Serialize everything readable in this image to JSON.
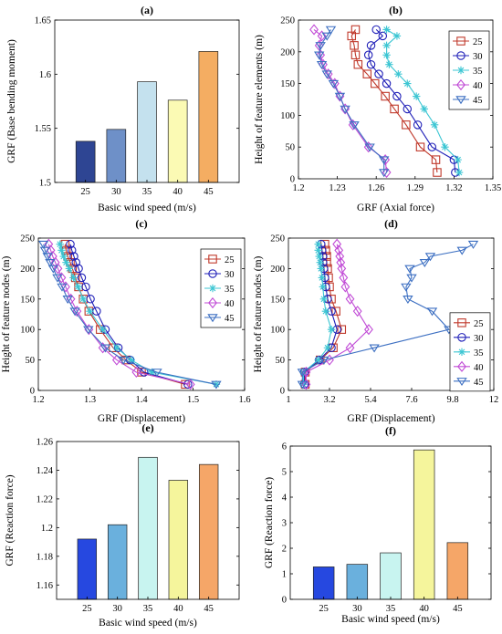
{
  "chart_data": [
    {
      "panel": "(a)",
      "type": "bar",
      "title": "(a)",
      "xlabel": "Basic wind speed (m/s)",
      "ylabel": "GRF (Base bending moment)",
      "categories": [
        "25",
        "30",
        "35",
        "40",
        "45"
      ],
      "values": [
        1.538,
        1.549,
        1.593,
        1.576,
        1.621
      ],
      "ylim": [
        1.5,
        1.65
      ],
      "yticks": [
        1.5,
        1.55,
        1.6,
        1.65
      ],
      "ytick_labels": [
        "1.5",
        "1.55",
        "1.6",
        "1.65"
      ],
      "colors": [
        "#2e4593",
        "#6e90c8",
        "#c4e1ee",
        "#fbfab4",
        "#f4ad62"
      ],
      "grid": false
    },
    {
      "panel": "(b)",
      "type": "line",
      "title": "(b)",
      "xlabel": "GRF (Axial force)",
      "ylabel": "Height of feature elements (m)",
      "xlim": [
        1.2,
        1.35
      ],
      "ylim": [
        0,
        250
      ],
      "xticks": [
        1.2,
        1.23,
        1.26,
        1.29,
        1.32,
        1.35
      ],
      "xtick_labels": [
        "1.2",
        "1.23",
        "1.26",
        "1.29",
        "1.32",
        "1.35"
      ],
      "yticks": [
        0,
        50,
        100,
        150,
        200,
        250
      ],
      "ytick_labels": [
        "0",
        "50",
        "100",
        "150",
        "200",
        "250"
      ],
      "legend_position": "top-right",
      "y": [
        235,
        225,
        210,
        195,
        180,
        165,
        150,
        130,
        110,
        85,
        50,
        30,
        10
      ],
      "series": [
        {
          "name": "25",
          "color": "#c0392b",
          "marker": "square",
          "x": [
            1.244,
            1.241,
            1.243,
            1.244,
            1.246,
            1.253,
            1.259,
            1.267,
            1.274,
            1.283,
            1.294,
            1.306,
            1.307
          ]
        },
        {
          "name": "30",
          "color": "#1f1fb8",
          "marker": "circle",
          "x": [
            1.26,
            1.265,
            1.256,
            1.254,
            1.256,
            1.262,
            1.268,
            1.276,
            1.284,
            1.292,
            1.303,
            1.32,
            1.321
          ]
        },
        {
          "name": "35",
          "color": "#3cc6d3",
          "marker": "star",
          "x": [
            1.268,
            1.276,
            1.268,
            1.268,
            1.27,
            1.277,
            1.284,
            1.291,
            1.297,
            1.305,
            1.313,
            1.323,
            1.324
          ]
        },
        {
          "name": "40",
          "color": "#c14bd6",
          "marker": "diamond",
          "x": [
            1.212,
            1.218,
            1.216,
            1.217,
            1.219,
            1.223,
            1.228,
            1.232,
            1.236,
            1.242,
            1.254,
            1.267,
            1.268
          ]
        },
        {
          "name": "45",
          "color": "#3c6fc2",
          "marker": "triangle-down",
          "x": [
            1.225,
            1.222,
            1.217,
            1.216,
            1.218,
            1.222,
            1.227,
            1.232,
            1.236,
            1.243,
            1.255,
            1.266,
            1.266
          ]
        }
      ]
    },
    {
      "panel": "(c)",
      "type": "line",
      "title": "(c)",
      "xlabel": "GRF (Displacement)",
      "ylabel": "Height of feature nodes (m)",
      "xlim": [
        1.2,
        1.6
      ],
      "ylim": [
        0,
        250
      ],
      "xticks": [
        1.2,
        1.3,
        1.4,
        1.5,
        1.6
      ],
      "xtick_labels": [
        "1.2",
        "1.3",
        "1.4",
        "1.5",
        "1.6"
      ],
      "yticks": [
        0,
        50,
        100,
        150,
        200,
        250
      ],
      "ytick_labels": [
        "0",
        "50",
        "100",
        "150",
        "200",
        "250"
      ],
      "legend_position": "top-right",
      "y": [
        240,
        230,
        220,
        210,
        200,
        185,
        170,
        150,
        130,
        100,
        70,
        50,
        30,
        10
      ],
      "series": [
        {
          "name": "25",
          "color": "#c0392b",
          "marker": "square",
          "x": [
            1.252,
            1.254,
            1.257,
            1.262,
            1.266,
            1.272,
            1.278,
            1.287,
            1.298,
            1.32,
            1.345,
            1.37,
            1.4,
            1.485
          ]
        },
        {
          "name": "30",
          "color": "#1f1fb8",
          "marker": "circle",
          "x": [
            1.262,
            1.265,
            1.269,
            1.273,
            1.278,
            1.284,
            1.292,
            1.301,
            1.313,
            1.33,
            1.355,
            1.378,
            1.405,
            1.49
          ]
        },
        {
          "name": "35",
          "color": "#3cc6d3",
          "marker": "star",
          "x": [
            1.242,
            1.245,
            1.249,
            1.254,
            1.26,
            1.268,
            1.277,
            1.287,
            1.3,
            1.325,
            1.352,
            1.38,
            1.42,
            1.545
          ]
        },
        {
          "name": "40",
          "color": "#c14bd6",
          "marker": "diamond",
          "x": [
            1.22,
            1.224,
            1.228,
            1.233,
            1.238,
            1.245,
            1.253,
            1.263,
            1.275,
            1.298,
            1.325,
            1.352,
            1.39,
            1.495
          ]
        },
        {
          "name": "45",
          "color": "#3c6fc2",
          "marker": "triangle-down",
          "x": [
            1.21,
            1.213,
            1.218,
            1.223,
            1.229,
            1.237,
            1.246,
            1.257,
            1.271,
            1.297,
            1.33,
            1.365,
            1.43,
            1.545
          ]
        }
      ]
    },
    {
      "panel": "(d)",
      "type": "line",
      "title": "(d)",
      "xlabel": "GRF (Displacement)",
      "ylabel": "Height of feature nodes (m)",
      "xlim": [
        1,
        12
      ],
      "ylim": [
        0,
        250
      ],
      "xticks": [
        1,
        3.2,
        5.4,
        7.6,
        9.8,
        12
      ],
      "xtick_labels": [
        "1",
        "3.2",
        "5.4",
        "7.6",
        "9.8",
        "12"
      ],
      "yticks": [
        0,
        50,
        100,
        150,
        200,
        250
      ],
      "ytick_labels": [
        "0",
        "50",
        "100",
        "150",
        "200",
        "250"
      ],
      "legend_position": "center-right",
      "y": [
        240,
        230,
        220,
        210,
        200,
        185,
        170,
        150,
        130,
        100,
        70,
        50,
        30,
        10
      ],
      "series": [
        {
          "name": "25",
          "color": "#c0392b",
          "marker": "square",
          "x": [
            2.95,
            3.0,
            3.05,
            3.05,
            3.1,
            3.15,
            3.2,
            3.3,
            3.55,
            3.85,
            3.4,
            2.7,
            1.9,
            1.9
          ]
        },
        {
          "name": "30",
          "color": "#1f1fb8",
          "marker": "circle",
          "x": [
            2.75,
            2.8,
            2.85,
            2.85,
            2.9,
            2.95,
            3.0,
            3.1,
            3.3,
            3.6,
            3.3,
            2.65,
            1.85,
            1.85
          ]
        },
        {
          "name": "35",
          "color": "#3cc6d3",
          "marker": "star",
          "x": [
            2.6,
            2.6,
            2.65,
            2.7,
            2.75,
            2.8,
            2.85,
            2.9,
            3.0,
            3.3,
            3.1,
            2.6,
            1.8,
            1.8
          ]
        },
        {
          "name": "40",
          "color": "#c14bd6",
          "marker": "diamond",
          "x": [
            3.6,
            3.7,
            3.75,
            3.8,
            3.85,
            3.95,
            4.05,
            4.3,
            4.7,
            5.3,
            4.3,
            3.2,
            1.95,
            1.95
          ]
        },
        {
          "name": "45",
          "color": "#3c6fc2",
          "marker": "triangle-down",
          "x": [
            10.9,
            10.3,
            8.6,
            8.3,
            7.5,
            7.6,
            7.3,
            7.4,
            8.7,
            9.6,
            5.6,
            2.9,
            1.75,
            1.75
          ]
        }
      ]
    },
    {
      "panel": "(e)",
      "type": "bar",
      "title": "(e)",
      "xlabel": "Basic wind speed (m/s)",
      "ylabel": "GRF (Reaction force)",
      "categories": [
        "25",
        "30",
        "35",
        "40",
        "45"
      ],
      "values": [
        1.192,
        1.202,
        1.249,
        1.233,
        1.244
      ],
      "ylim": [
        1.15,
        1.26
      ],
      "yticks": [
        1.16,
        1.18,
        1.2,
        1.22,
        1.24,
        1.26
      ],
      "ytick_labels": [
        "1.16",
        "1.18",
        "1.2",
        "1.22",
        "1.24",
        "1.26"
      ],
      "colors": [
        "#2648e0",
        "#6ab0dd",
        "#c8f4f0",
        "#f5f59c",
        "#f5a668"
      ],
      "grid": false
    },
    {
      "panel": "(f)",
      "type": "bar",
      "title": "(f)",
      "xlabel": "Basic wind speed (m/s)",
      "ylabel": "GRF (Reaction force)",
      "categories": [
        "25",
        "30",
        "35",
        "40",
        "45"
      ],
      "values": [
        1.27,
        1.37,
        1.82,
        5.85,
        2.22
      ],
      "ylim": [
        0,
        6
      ],
      "yticks": [
        0,
        1,
        2,
        3,
        4,
        5,
        6
      ],
      "ytick_labels": [
        "0",
        "1",
        "2",
        "3",
        "4",
        "5",
        "6"
      ],
      "colors": [
        "#2648e0",
        "#6ab0dd",
        "#c8f4f0",
        "#f5f59c",
        "#f5a668"
      ],
      "grid": false
    }
  ]
}
